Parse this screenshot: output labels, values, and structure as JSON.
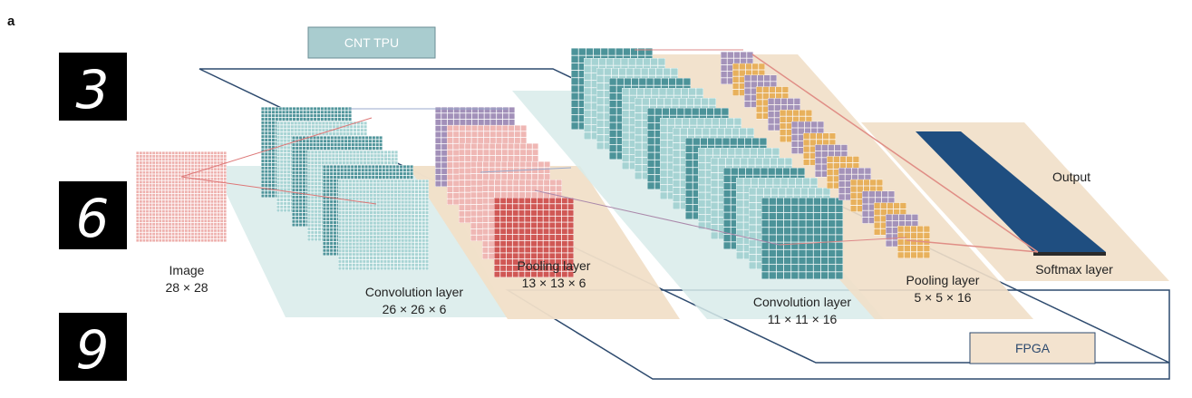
{
  "panel_label": "a",
  "colors": {
    "tpu_frame": "#2d4a6e",
    "tpu_box_fill": "#a9cccf",
    "tpu_box_text": "#ffffff",
    "fpga_frame": "#2d4a6e",
    "fpga_box_fill": "#f3e3cf",
    "fpga_box_text": "#2d4a6e",
    "teal_grid": "#3d8a90",
    "teal_light": "#9ecfcf",
    "red_grid": "#cc4a47",
    "pink_grid": "#eeb1ae",
    "purple_grid": "#9a87b3",
    "orange_grid": "#e6a84a",
    "output_blue": "#1f4e80",
    "plane_teal": "#d8ebea",
    "plane_beige": "#f1dfc8"
  },
  "hardware": {
    "tpu_label": "CNT TPU",
    "fpga_label": "FPGA"
  },
  "digits": [
    {
      "glyph": "3",
      "name": "digit-three-image"
    },
    {
      "glyph": "6",
      "name": "digit-six-image"
    },
    {
      "glyph": "9",
      "name": "digit-nine-image"
    }
  ],
  "layers": {
    "image": {
      "name": "Image",
      "dims": "28 × 28"
    },
    "conv1": {
      "name": "Convolution layer",
      "dims": "26 × 26 × 6"
    },
    "pool1": {
      "name": "Pooling layer",
      "dims": "13 × 13 × 6"
    },
    "conv2": {
      "name": "Convolution layer",
      "dims": "11 × 11 × 16"
    },
    "pool2": {
      "name": "Pooling layer",
      "dims": "5 × 5 × 16"
    },
    "softmax": {
      "name": "Softmax layer"
    },
    "output": {
      "name": "Output"
    }
  }
}
